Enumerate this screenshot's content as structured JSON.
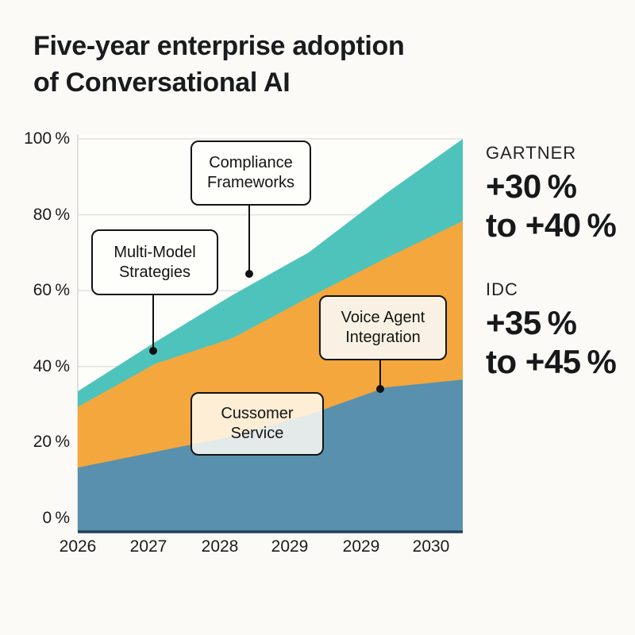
{
  "title": {
    "line1": "Five-year enterprise adoption",
    "line2": "of Conversational AI"
  },
  "callouts": {
    "compliance": {
      "line1": "Compliance",
      "line2": "Frameworks"
    },
    "multi_model": {
      "line1": "Multi-Model",
      "line2": "Strategies"
    },
    "voice_agent": {
      "line1": "Voice Agent",
      "line2": "Integration"
    },
    "customer_service": {
      "line1": "Cussomer",
      "line2": "Service"
    }
  },
  "sources": [
    {
      "name": "GARTNER",
      "value": "+30 %",
      "range": "to +40 %"
    },
    {
      "name": "IDC",
      "value": "+35 %",
      "range": "to +45 %"
    }
  ],
  "chart_data": {
    "type": "area",
    "stacked": true,
    "title": "Five-year enterprise adoption of Conversational AI",
    "categories": [
      "2026",
      "2027",
      "2028",
      "2029",
      "2029",
      "2030"
    ],
    "y_ticks": [
      "100 %",
      "80 %",
      "60 %",
      "40 %",
      "20 %",
      "0 %"
    ],
    "ylim": [
      0,
      100
    ],
    "grid": "horizontal",
    "legend": "none",
    "series": [
      {
        "name": "Customer Service",
        "color": "#5890AE",
        "cumulative_top_pct": [
          16,
          20,
          24,
          29.5,
          36.5,
          38.5
        ]
      },
      {
        "name": "Voice Agent Integration",
        "color": "#F4A73C",
        "cumulative_top_pct": [
          31.5,
          42.5,
          49,
          59.5,
          69.5,
          79
        ]
      },
      {
        "name": "Compliance Frameworks",
        "color": "#4EC3BC",
        "cumulative_top_pct": [
          35.5,
          48,
          60,
          71,
          86,
          100
        ]
      }
    ],
    "annotations": [
      "Compliance Frameworks",
      "Multi-Model Strategies",
      "Voice Agent Integration",
      "Cussomer Service",
      "GARTNER +30 % to +40 %",
      "IDC +35 % to +45 %"
    ]
  }
}
